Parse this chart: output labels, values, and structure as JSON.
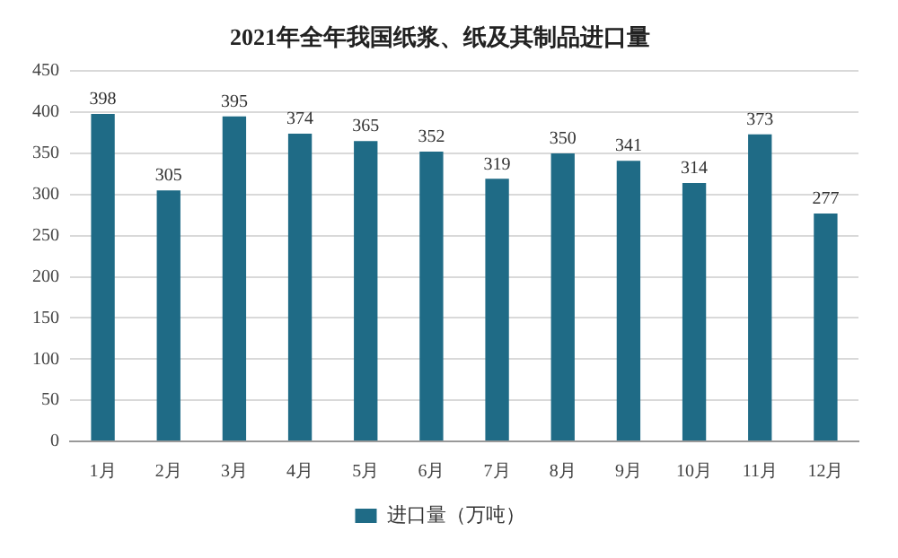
{
  "chart_data": {
    "type": "bar",
    "title": "2021年全年我国纸浆、纸及其制品进口量",
    "categories": [
      "1月",
      "2月",
      "3月",
      "4月",
      "5月",
      "6月",
      "7月",
      "8月",
      "9月",
      "10月",
      "11月",
      "12月"
    ],
    "series": [
      {
        "name": "进口量（万吨）",
        "color": "#1f6b86",
        "values": [
          398,
          305,
          395,
          374,
          365,
          352,
          319,
          350,
          341,
          314,
          373,
          277
        ]
      }
    ],
    "ylim": [
      0,
      450
    ],
    "yticks": [
      0,
      50,
      100,
      150,
      200,
      250,
      300,
      350,
      400,
      450
    ],
    "grid": "y",
    "legend": "bottom",
    "data_labels": true
  }
}
